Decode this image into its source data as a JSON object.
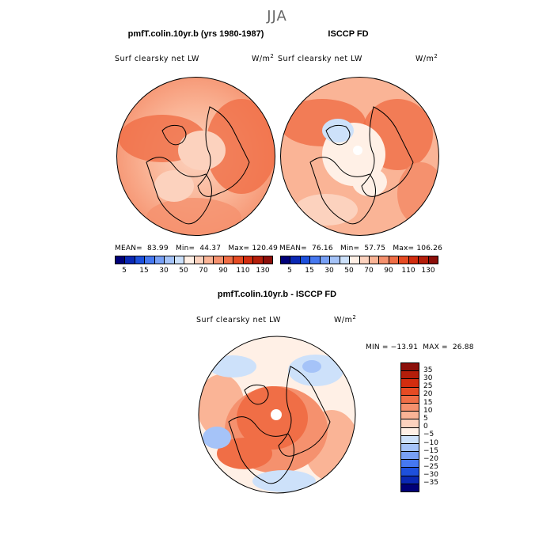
{
  "figure_title": "JJA",
  "panels": [
    {
      "title": "pmfT.colin.10yr.b (yrs 1980-1987)",
      "variable": "Surf clearsky net LW",
      "units_base": "W/m",
      "units_exp": "2",
      "stats": "MEAN=  83.99   Min=  44.37   Max= 120.49"
    },
    {
      "title": "ISCCP FD",
      "variable": "Surf clearsky net LW",
      "units_base": "W/m",
      "units_exp": "2",
      "stats": "MEAN=  76.16   Min=  57.75   Max= 106.26"
    },
    {
      "title": "pmfT.colin.10yr.b - ISCCP FD",
      "variable": "Surf clearsky net LW",
      "units_base": "W/m",
      "units_exp": "2",
      "stats": "MIN = −13.91  MAX =  26.88"
    }
  ],
  "colorbar_abs": {
    "tick_labels": [
      "5",
      "15",
      "30",
      "50",
      "70",
      "90",
      "110",
      "130"
    ],
    "colors": [
      "#000078",
      "#0a28b4",
      "#1e50dc",
      "#4678f0",
      "#78a0f5",
      "#a5c3f8",
      "#cde1fa",
      "#fff0e6",
      "#fcd2be",
      "#fab496",
      "#f5916e",
      "#f06e46",
      "#e64b23",
      "#d22d0f",
      "#b41e0a",
      "#8c0f0a"
    ]
  },
  "colorbar_diff": {
    "tick_labels": [
      "35",
      "30",
      "25",
      "20",
      "15",
      "10",
      "5",
      "0",
      "−5",
      "−10",
      "−15",
      "−20",
      "−25",
      "−30",
      "−35"
    ],
    "colors": [
      "#8c0f0a",
      "#b41e0a",
      "#d22d0f",
      "#e64b23",
      "#f06e46",
      "#f5916e",
      "#fab496",
      "#fcd2be",
      "#fff0e6",
      "#cde1fa",
      "#a5c3f8",
      "#78a0f5",
      "#4678f0",
      "#1e50dc",
      "#0a28b4",
      "#000078"
    ]
  }
}
